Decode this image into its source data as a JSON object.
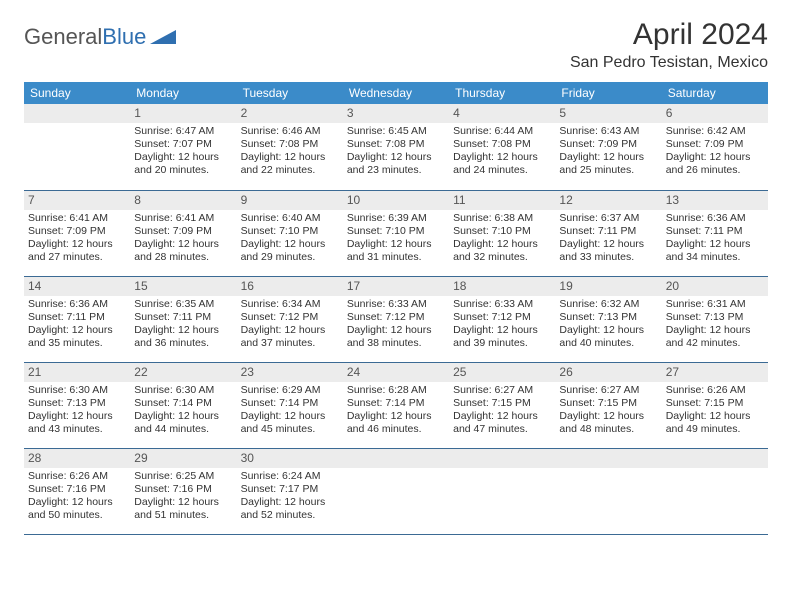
{
  "logo": {
    "text1": "General",
    "text2": "Blue"
  },
  "header": {
    "month_title": "April 2024",
    "location": "San Pedro Tesistan, Mexico"
  },
  "colors": {
    "header_bg": "#3b8bc9",
    "header_text": "#ffffff",
    "row_border": "#3b6a94",
    "daynum_bg": "#ececec",
    "logo_gray": "#555555",
    "logo_blue": "#2f6fb0"
  },
  "layout": {
    "days_in_month": 30,
    "first_weekday_index": 1,
    "weeks": 5
  },
  "weekdays": [
    "Sunday",
    "Monday",
    "Tuesday",
    "Wednesday",
    "Thursday",
    "Friday",
    "Saturday"
  ],
  "days": {
    "1": {
      "sunrise": "6:47 AM",
      "sunset": "7:07 PM",
      "daylight": "12 hours and 20 minutes."
    },
    "2": {
      "sunrise": "6:46 AM",
      "sunset": "7:08 PM",
      "daylight": "12 hours and 22 minutes."
    },
    "3": {
      "sunrise": "6:45 AM",
      "sunset": "7:08 PM",
      "daylight": "12 hours and 23 minutes."
    },
    "4": {
      "sunrise": "6:44 AM",
      "sunset": "7:08 PM",
      "daylight": "12 hours and 24 minutes."
    },
    "5": {
      "sunrise": "6:43 AM",
      "sunset": "7:09 PM",
      "daylight": "12 hours and 25 minutes."
    },
    "6": {
      "sunrise": "6:42 AM",
      "sunset": "7:09 PM",
      "daylight": "12 hours and 26 minutes."
    },
    "7": {
      "sunrise": "6:41 AM",
      "sunset": "7:09 PM",
      "daylight": "12 hours and 27 minutes."
    },
    "8": {
      "sunrise": "6:41 AM",
      "sunset": "7:09 PM",
      "daylight": "12 hours and 28 minutes."
    },
    "9": {
      "sunrise": "6:40 AM",
      "sunset": "7:10 PM",
      "daylight": "12 hours and 29 minutes."
    },
    "10": {
      "sunrise": "6:39 AM",
      "sunset": "7:10 PM",
      "daylight": "12 hours and 31 minutes."
    },
    "11": {
      "sunrise": "6:38 AM",
      "sunset": "7:10 PM",
      "daylight": "12 hours and 32 minutes."
    },
    "12": {
      "sunrise": "6:37 AM",
      "sunset": "7:11 PM",
      "daylight": "12 hours and 33 minutes."
    },
    "13": {
      "sunrise": "6:36 AM",
      "sunset": "7:11 PM",
      "daylight": "12 hours and 34 minutes."
    },
    "14": {
      "sunrise": "6:36 AM",
      "sunset": "7:11 PM",
      "daylight": "12 hours and 35 minutes."
    },
    "15": {
      "sunrise": "6:35 AM",
      "sunset": "7:11 PM",
      "daylight": "12 hours and 36 minutes."
    },
    "16": {
      "sunrise": "6:34 AM",
      "sunset": "7:12 PM",
      "daylight": "12 hours and 37 minutes."
    },
    "17": {
      "sunrise": "6:33 AM",
      "sunset": "7:12 PM",
      "daylight": "12 hours and 38 minutes."
    },
    "18": {
      "sunrise": "6:33 AM",
      "sunset": "7:12 PM",
      "daylight": "12 hours and 39 minutes."
    },
    "19": {
      "sunrise": "6:32 AM",
      "sunset": "7:13 PM",
      "daylight": "12 hours and 40 minutes."
    },
    "20": {
      "sunrise": "6:31 AM",
      "sunset": "7:13 PM",
      "daylight": "12 hours and 42 minutes."
    },
    "21": {
      "sunrise": "6:30 AM",
      "sunset": "7:13 PM",
      "daylight": "12 hours and 43 minutes."
    },
    "22": {
      "sunrise": "6:30 AM",
      "sunset": "7:14 PM",
      "daylight": "12 hours and 44 minutes."
    },
    "23": {
      "sunrise": "6:29 AM",
      "sunset": "7:14 PM",
      "daylight": "12 hours and 45 minutes."
    },
    "24": {
      "sunrise": "6:28 AM",
      "sunset": "7:14 PM",
      "daylight": "12 hours and 46 minutes."
    },
    "25": {
      "sunrise": "6:27 AM",
      "sunset": "7:15 PM",
      "daylight": "12 hours and 47 minutes."
    },
    "26": {
      "sunrise": "6:27 AM",
      "sunset": "7:15 PM",
      "daylight": "12 hours and 48 minutes."
    },
    "27": {
      "sunrise": "6:26 AM",
      "sunset": "7:15 PM",
      "daylight": "12 hours and 49 minutes."
    },
    "28": {
      "sunrise": "6:26 AM",
      "sunset": "7:16 PM",
      "daylight": "12 hours and 50 minutes."
    },
    "29": {
      "sunrise": "6:25 AM",
      "sunset": "7:16 PM",
      "daylight": "12 hours and 51 minutes."
    },
    "30": {
      "sunrise": "6:24 AM",
      "sunset": "7:17 PM",
      "daylight": "12 hours and 52 minutes."
    }
  },
  "labels": {
    "sunrise": "Sunrise: ",
    "sunset": "Sunset: ",
    "daylight": "Daylight: "
  }
}
